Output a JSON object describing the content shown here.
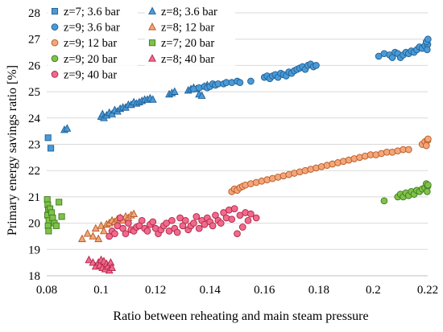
{
  "chart_data": {
    "type": "scatter",
    "title": "",
    "xlabel": "Ratio between reheating and main steam pressure",
    "ylabel": "Primary energy savings ratio [%]",
    "xlim": [
      0.08,
      0.22
    ],
    "ylim": [
      18,
      28
    ],
    "x_ticks": [
      "0.08",
      "0.1",
      "0.12",
      "0.14",
      "0.16",
      "0.18",
      "0.2",
      "0.22"
    ],
    "y_ticks": [
      "18",
      "19",
      "20",
      "21",
      "22",
      "23",
      "24",
      "25",
      "26",
      "27",
      "28"
    ],
    "grid": "horizontal",
    "legend_position": "top-left, inside plot, two columns",
    "series": [
      {
        "name": "z=7; 3.6 bar",
        "marker": "square",
        "fill": "#4a9ad6",
        "stroke": "#1f5f96",
        "points": [
          [
            0.0805,
            23.25
          ],
          [
            0.0815,
            22.85
          ]
        ]
      },
      {
        "name": "z=8; 3.6 bar",
        "marker": "triangle",
        "fill": "#4a9ad6",
        "stroke": "#1f5f96",
        "points": [
          [
            0.0865,
            23.55
          ],
          [
            0.0875,
            23.6
          ],
          [
            0.1,
            24.05
          ],
          [
            0.1005,
            24.15
          ],
          [
            0.101,
            24.0
          ],
          [
            0.102,
            24.1
          ],
          [
            0.103,
            24.2
          ],
          [
            0.104,
            24.15
          ],
          [
            0.105,
            24.3
          ],
          [
            0.106,
            24.25
          ],
          [
            0.107,
            24.35
          ],
          [
            0.108,
            24.4
          ],
          [
            0.109,
            24.4
          ],
          [
            0.11,
            24.5
          ],
          [
            0.111,
            24.5
          ],
          [
            0.112,
            24.6
          ],
          [
            0.113,
            24.55
          ],
          [
            0.114,
            24.6
          ],
          [
            0.115,
            24.65
          ],
          [
            0.116,
            24.7
          ],
          [
            0.117,
            24.7
          ],
          [
            0.118,
            24.75
          ],
          [
            0.119,
            24.7
          ],
          [
            0.125,
            24.9
          ],
          [
            0.126,
            24.95
          ],
          [
            0.127,
            25.0
          ],
          [
            0.132,
            25.05
          ],
          [
            0.133,
            25.1
          ],
          [
            0.134,
            25.15
          ],
          [
            0.135,
            25.1
          ],
          [
            0.136,
            24.9
          ],
          [
            0.137,
            24.85
          ],
          [
            0.138,
            25.2
          ],
          [
            0.139,
            25.25
          ]
        ]
      },
      {
        "name": "z=9; 3.6 bar",
        "marker": "circle",
        "fill": "#4a9ad6",
        "stroke": "#1f5f96",
        "points": [
          [
            0.134,
            25.1
          ],
          [
            0.136,
            25.15
          ],
          [
            0.138,
            25.2
          ],
          [
            0.139,
            25.15
          ],
          [
            0.14,
            25.2
          ],
          [
            0.141,
            25.3
          ],
          [
            0.142,
            25.25
          ],
          [
            0.143,
            25.3
          ],
          [
            0.145,
            25.3
          ],
          [
            0.146,
            25.35
          ],
          [
            0.148,
            25.35
          ],
          [
            0.15,
            25.4
          ],
          [
            0.151,
            25.35
          ],
          [
            0.155,
            25.4
          ],
          [
            0.16,
            25.55
          ],
          [
            0.161,
            25.6
          ],
          [
            0.162,
            25.5
          ],
          [
            0.163,
            25.6
          ],
          [
            0.164,
            25.65
          ],
          [
            0.165,
            25.55
          ],
          [
            0.166,
            25.7
          ],
          [
            0.167,
            25.65
          ],
          [
            0.168,
            25.6
          ],
          [
            0.169,
            25.75
          ],
          [
            0.17,
            25.7
          ],
          [
            0.171,
            25.8
          ],
          [
            0.172,
            25.85
          ],
          [
            0.173,
            25.9
          ],
          [
            0.174,
            25.95
          ],
          [
            0.175,
            25.85
          ],
          [
            0.176,
            26.0
          ],
          [
            0.177,
            26.05
          ],
          [
            0.178,
            25.95
          ],
          [
            0.179,
            26.0
          ],
          [
            0.202,
            26.35
          ],
          [
            0.204,
            26.45
          ],
          [
            0.206,
            26.4
          ],
          [
            0.207,
            26.3
          ],
          [
            0.208,
            26.5
          ],
          [
            0.209,
            26.45
          ],
          [
            0.21,
            26.3
          ],
          [
            0.211,
            26.4
          ],
          [
            0.212,
            26.5
          ],
          [
            0.213,
            26.45
          ],
          [
            0.214,
            26.55
          ],
          [
            0.215,
            26.5
          ],
          [
            0.216,
            26.6
          ],
          [
            0.217,
            26.7
          ],
          [
            0.218,
            26.65
          ],
          [
            0.219,
            26.75
          ],
          [
            0.22,
            26.8
          ],
          [
            0.2195,
            26.9
          ],
          [
            0.2198,
            26.6
          ],
          [
            0.2201,
            27.0
          ]
        ]
      },
      {
        "name": "z=8; 12 bar",
        "marker": "triangle",
        "fill": "#f4a57a",
        "stroke": "#b45a22",
        "points": [
          [
            0.093,
            19.4
          ],
          [
            0.095,
            19.6
          ],
          [
            0.097,
            19.5
          ],
          [
            0.098,
            19.8
          ],
          [
            0.099,
            19.4
          ],
          [
            0.1,
            19.9
          ],
          [
            0.101,
            19.7
          ],
          [
            0.102,
            19.95
          ],
          [
            0.103,
            20.0
          ],
          [
            0.104,
            20.1
          ],
          [
            0.105,
            20.05
          ],
          [
            0.106,
            20.15
          ],
          [
            0.107,
            20.2
          ],
          [
            0.108,
            20.1
          ],
          [
            0.109,
            20.25
          ],
          [
            0.11,
            20.2
          ],
          [
            0.111,
            20.3
          ],
          [
            0.112,
            20.35
          ]
        ]
      },
      {
        "name": "z=9; 12 bar",
        "marker": "circle",
        "fill": "#f4a57a",
        "stroke": "#b45a22",
        "points": [
          [
            0.148,
            21.2
          ],
          [
            0.149,
            21.3
          ],
          [
            0.15,
            21.25
          ],
          [
            0.151,
            21.35
          ],
          [
            0.152,
            21.4
          ],
          [
            0.153,
            21.45
          ],
          [
            0.155,
            21.5
          ],
          [
            0.157,
            21.55
          ],
          [
            0.159,
            21.6
          ],
          [
            0.161,
            21.65
          ],
          [
            0.163,
            21.7
          ],
          [
            0.165,
            21.75
          ],
          [
            0.167,
            21.8
          ],
          [
            0.169,
            21.85
          ],
          [
            0.171,
            21.9
          ],
          [
            0.173,
            21.95
          ],
          [
            0.175,
            22.0
          ],
          [
            0.177,
            22.05
          ],
          [
            0.179,
            22.1
          ],
          [
            0.181,
            22.15
          ],
          [
            0.183,
            22.2
          ],
          [
            0.185,
            22.25
          ],
          [
            0.187,
            22.3
          ],
          [
            0.189,
            22.35
          ],
          [
            0.191,
            22.4
          ],
          [
            0.193,
            22.45
          ],
          [
            0.195,
            22.5
          ],
          [
            0.197,
            22.55
          ],
          [
            0.199,
            22.6
          ],
          [
            0.201,
            22.6
          ],
          [
            0.203,
            22.65
          ],
          [
            0.205,
            22.7
          ],
          [
            0.207,
            22.7
          ],
          [
            0.209,
            22.75
          ],
          [
            0.211,
            22.8
          ],
          [
            0.213,
            22.8
          ],
          [
            0.218,
            23.0
          ],
          [
            0.219,
            23.1
          ],
          [
            0.22,
            23.15
          ],
          [
            0.2195,
            22.95
          ],
          [
            0.2201,
            23.2
          ]
        ]
      },
      {
        "name": "z=7; 20 bar",
        "marker": "square",
        "fill": "#7fc24a",
        "stroke": "#3f7a1e",
        "points": [
          [
            0.0802,
            20.9
          ],
          [
            0.0804,
            20.7
          ],
          [
            0.0806,
            20.5
          ],
          [
            0.0803,
            20.3
          ],
          [
            0.0808,
            20.1
          ],
          [
            0.0805,
            19.9
          ],
          [
            0.0807,
            19.7
          ],
          [
            0.0812,
            20.55
          ],
          [
            0.0818,
            20.4
          ],
          [
            0.0822,
            20.2
          ],
          [
            0.0828,
            20.0
          ],
          [
            0.0835,
            19.9
          ],
          [
            0.0845,
            20.8
          ],
          [
            0.0855,
            20.25
          ]
        ]
      },
      {
        "name": "z=9; 20 bar",
        "marker": "circle",
        "fill": "#7fc24a",
        "stroke": "#3f7a1e",
        "points": [
          [
            0.204,
            20.85
          ],
          [
            0.209,
            21.0
          ],
          [
            0.21,
            21.1
          ],
          [
            0.211,
            21.0
          ],
          [
            0.212,
            21.15
          ],
          [
            0.213,
            21.05
          ],
          [
            0.214,
            21.2
          ],
          [
            0.215,
            21.1
          ],
          [
            0.216,
            21.25
          ],
          [
            0.217,
            21.2
          ],
          [
            0.218,
            21.3
          ],
          [
            0.219,
            21.35
          ],
          [
            0.22,
            21.4
          ],
          [
            0.2195,
            21.5
          ],
          [
            0.2198,
            21.2
          ],
          [
            0.2201,
            21.45
          ]
        ]
      },
      {
        "name": "z=8; 40 bar",
        "marker": "triangle",
        "fill": "#f06a8a",
        "stroke": "#b0244a",
        "points": [
          [
            0.0955,
            18.6
          ],
          [
            0.097,
            18.5
          ],
          [
            0.098,
            18.35
          ],
          [
            0.099,
            18.5
          ],
          [
            0.0995,
            18.4
          ],
          [
            0.1,
            18.6
          ],
          [
            0.1005,
            18.3
          ],
          [
            0.101,
            18.55
          ],
          [
            0.1015,
            18.25
          ],
          [
            0.102,
            18.45
          ],
          [
            0.1025,
            18.35
          ],
          [
            0.103,
            18.2
          ],
          [
            0.1035,
            18.5
          ],
          [
            0.104,
            18.3
          ]
        ]
      },
      {
        "name": "z=9; 40 bar",
        "marker": "circle",
        "fill": "#f06a8a",
        "stroke": "#b0244a",
        "points": [
          [
            0.103,
            19.5
          ],
          [
            0.104,
            19.7
          ],
          [
            0.105,
            19.6
          ],
          [
            0.106,
            19.9
          ],
          [
            0.107,
            20.2
          ],
          [
            0.108,
            19.8
          ],
          [
            0.109,
            19.6
          ],
          [
            0.11,
            20.0
          ],
          [
            0.111,
            19.75
          ],
          [
            0.112,
            19.7
          ],
          [
            0.113,
            19.85
          ],
          [
            0.114,
            19.9
          ],
          [
            0.115,
            20.1
          ],
          [
            0.116,
            19.8
          ],
          [
            0.117,
            19.7
          ],
          [
            0.118,
            19.95
          ],
          [
            0.119,
            20.05
          ],
          [
            0.12,
            19.8
          ],
          [
            0.121,
            19.6
          ],
          [
            0.122,
            19.75
          ],
          [
            0.123,
            19.9
          ],
          [
            0.124,
            20.0
          ],
          [
            0.125,
            19.7
          ],
          [
            0.126,
            20.1
          ],
          [
            0.127,
            19.8
          ],
          [
            0.128,
            19.65
          ],
          [
            0.129,
            20.2
          ],
          [
            0.13,
            19.9
          ],
          [
            0.131,
            20.1
          ],
          [
            0.132,
            19.75
          ],
          [
            0.133,
            19.9
          ],
          [
            0.134,
            20.0
          ],
          [
            0.135,
            20.25
          ],
          [
            0.136,
            19.8
          ],
          [
            0.137,
            20.1
          ],
          [
            0.138,
            19.95
          ],
          [
            0.139,
            20.2
          ],
          [
            0.14,
            20.05
          ],
          [
            0.141,
            19.9
          ],
          [
            0.142,
            20.3
          ],
          [
            0.143,
            20.1
          ],
          [
            0.144,
            20.0
          ],
          [
            0.145,
            20.4
          ],
          [
            0.146,
            20.2
          ],
          [
            0.147,
            20.5
          ],
          [
            0.148,
            20.15
          ],
          [
            0.149,
            20.55
          ],
          [
            0.15,
            19.6
          ],
          [
            0.151,
            20.3
          ],
          [
            0.152,
            19.85
          ],
          [
            0.153,
            20.4
          ],
          [
            0.154,
            20.1
          ],
          [
            0.155,
            20.35
          ],
          [
            0.157,
            20.2
          ]
        ]
      }
    ]
  }
}
